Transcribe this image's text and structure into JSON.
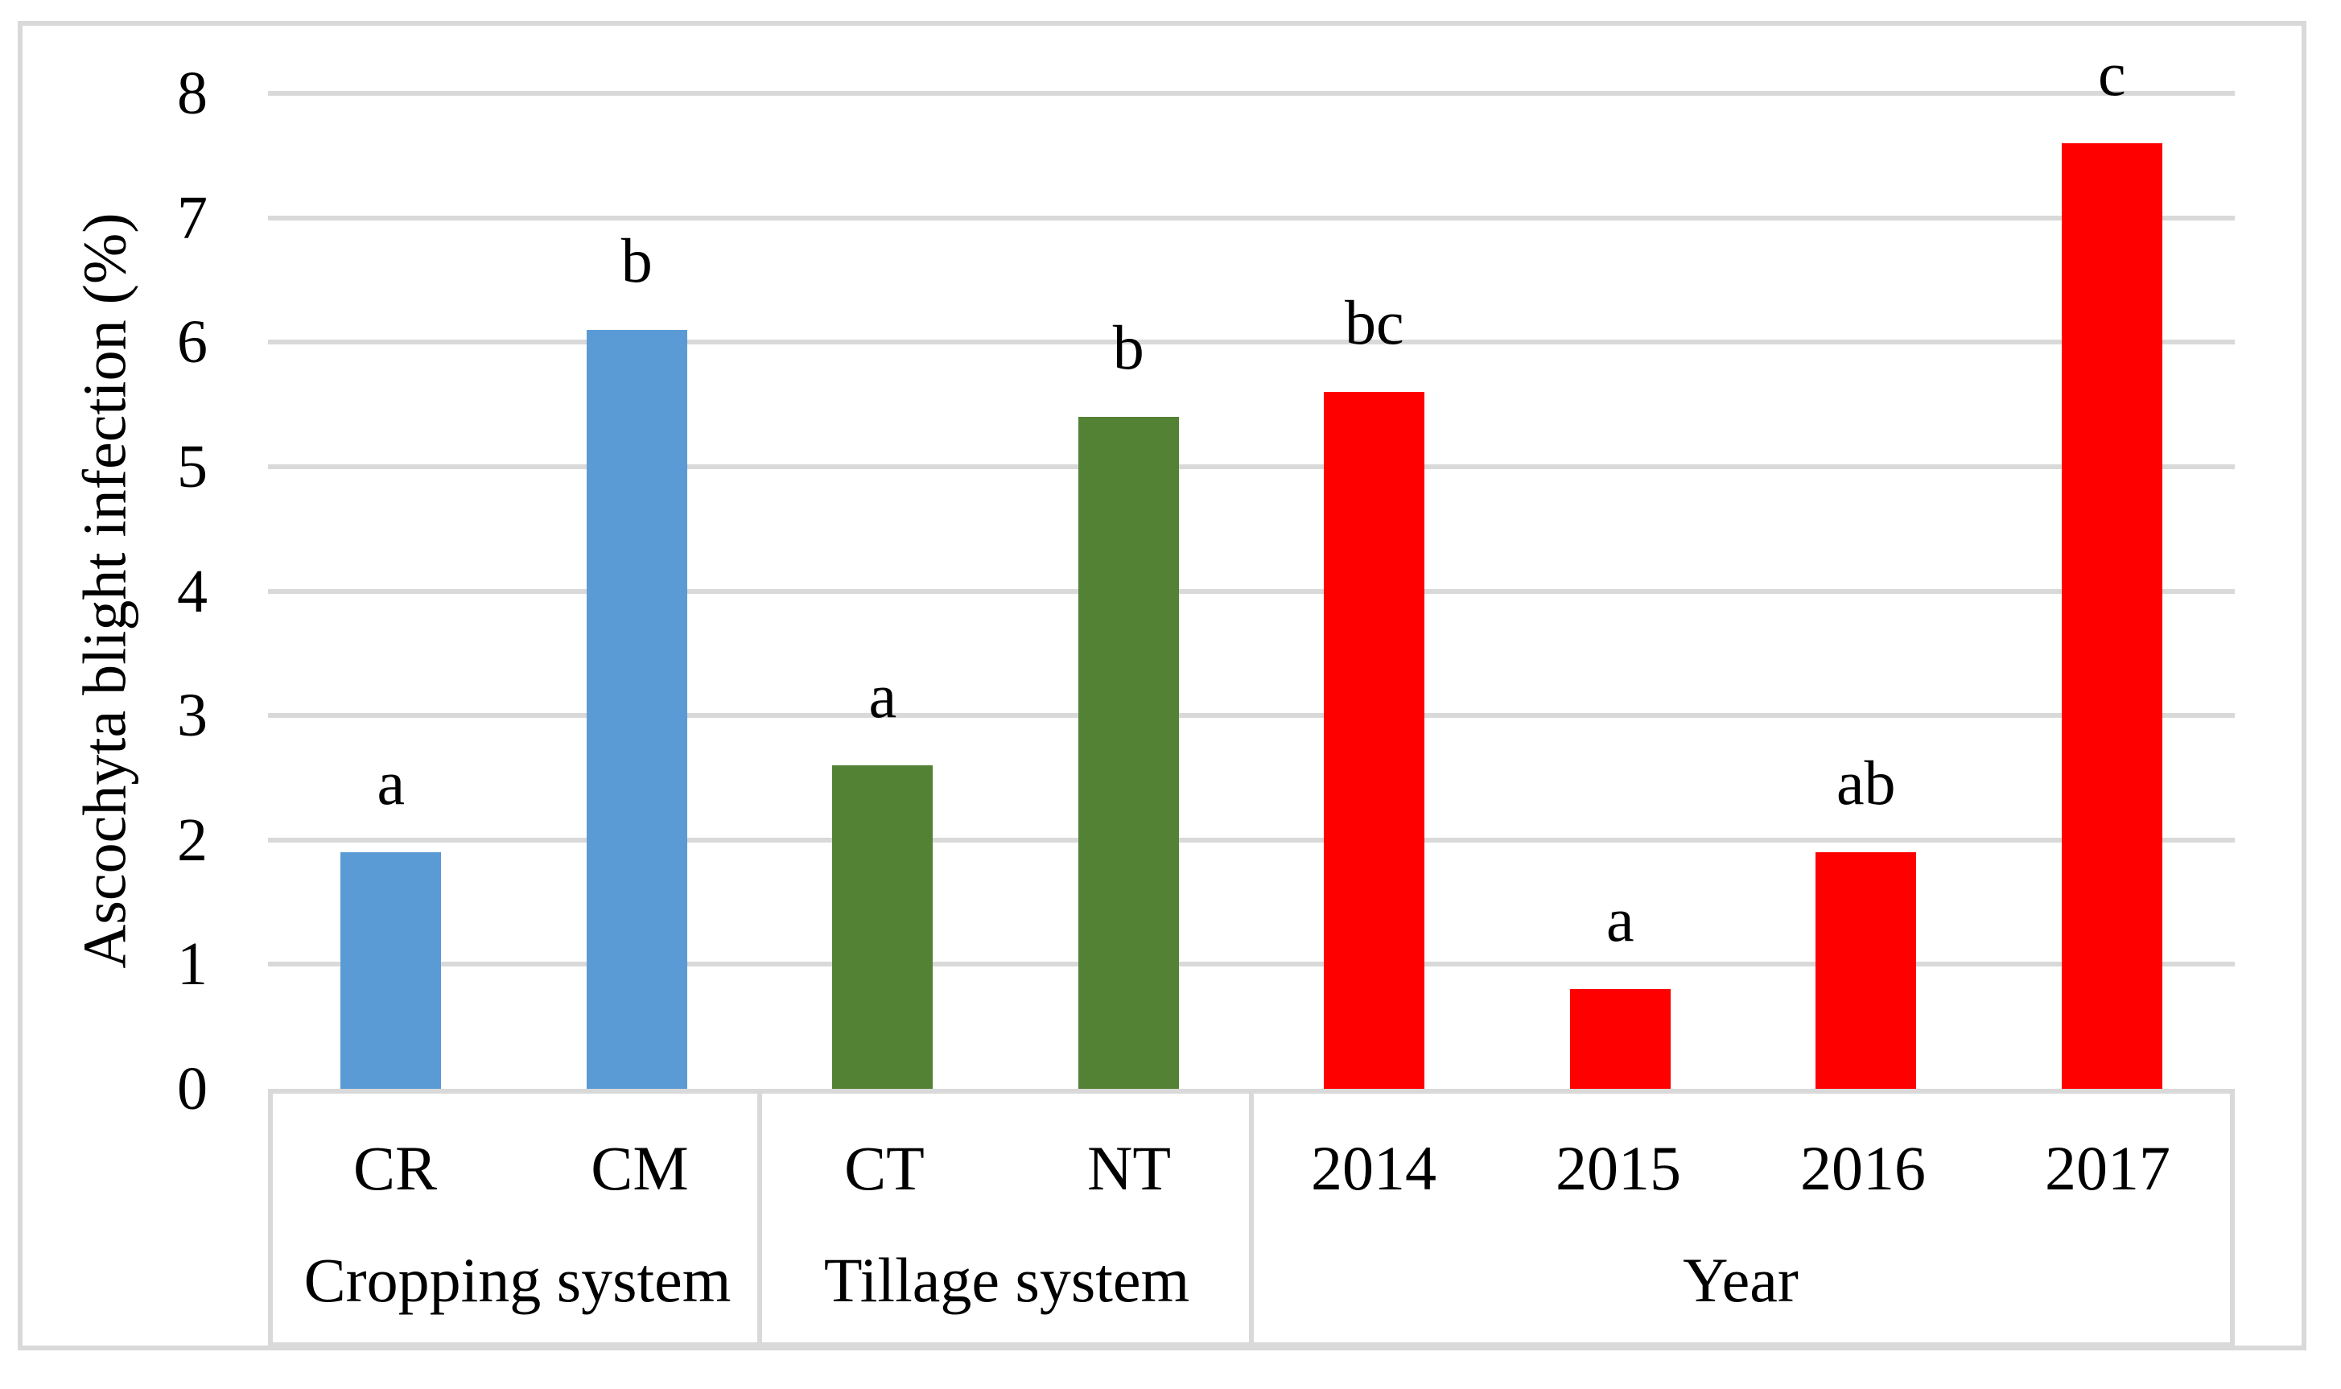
{
  "figure": {
    "frame_color": "#D9D9D9",
    "gridline_color": "#D9D9D9",
    "text_color": "#000000"
  },
  "chart_data": {
    "type": "bar",
    "title": "",
    "ylabel": "Ascochyta blight infection (%)",
    "xlabel": "",
    "ylim": [
      0,
      8
    ],
    "yticks": [
      0,
      1,
      2,
      3,
      4,
      5,
      6,
      7,
      8
    ],
    "grid": true,
    "legend": "none",
    "annotation_note": "letters above bars are statistical significance groups",
    "groups": [
      {
        "label": "Cropping system",
        "color": "#5B9BD5",
        "bars": [
          {
            "category": "CR",
            "value": 1.9,
            "letter": "a"
          },
          {
            "category": "CM",
            "value": 6.1,
            "letter": "b"
          }
        ]
      },
      {
        "label": "Tillage system",
        "color": "#538234",
        "bars": [
          {
            "category": "CT",
            "value": 2.6,
            "letter": "a"
          },
          {
            "category": "NT",
            "value": 5.4,
            "letter": "b"
          }
        ]
      },
      {
        "label": "Year",
        "color": "#FF0000",
        "bars": [
          {
            "category": "2014",
            "value": 5.6,
            "letter": "bc"
          },
          {
            "category": "2015",
            "value": 0.8,
            "letter": "a"
          },
          {
            "category": "2016",
            "value": 1.9,
            "letter": "ab"
          },
          {
            "category": "2017",
            "value": 7.6,
            "letter": "c"
          }
        ]
      }
    ]
  }
}
